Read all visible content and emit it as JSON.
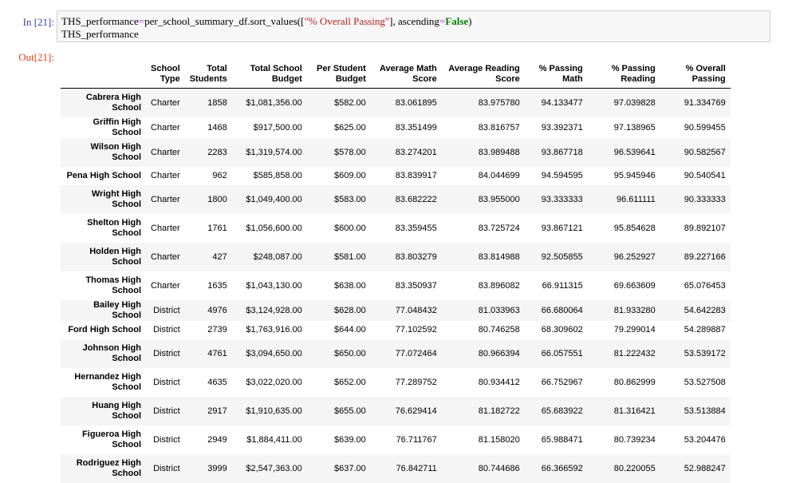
{
  "cell": {
    "in_prompt": "In [21]:",
    "out_prompt": "Out[21]:",
    "code": {
      "line1_var": "THS_performance",
      "line1_op": "=",
      "line1_call": "per_school_summary_df.sort_values([",
      "line1_str": "\"% Overall Passing\"",
      "line1_mid": "], ascending",
      "line1_op2": "=",
      "line1_kw": "False",
      "line1_end": ")",
      "line2": "THS_performance"
    }
  },
  "table": {
    "columns": [
      "School\nType",
      "Total\nStudents",
      "Total School\nBudget",
      "Per Student\nBudget",
      "Average Math\nScore",
      "Average Reading\nScore",
      "% Passing\nMath",
      "% Passing\nReading",
      "% Overall\nPassing"
    ],
    "rows": [
      {
        "school": "Cabrera High School",
        "cells": [
          "Charter",
          "1858",
          "$1,081,356.00",
          "$582.00",
          "83.061895",
          "83.975780",
          "94.133477",
          "97.039828",
          "91.334769"
        ]
      },
      {
        "school": "Griffin High School",
        "cells": [
          "Charter",
          "1468",
          "$917,500.00",
          "$625.00",
          "83.351499",
          "83.816757",
          "93.392371",
          "97.138965",
          "90.599455"
        ]
      },
      {
        "school": "Wilson High School",
        "cells": [
          "Charter",
          "2283",
          "$1,319,574.00",
          "$578.00",
          "83.274201",
          "83.989488",
          "93.867718",
          "96.539641",
          "90.582567"
        ]
      },
      {
        "school": "Pena High School",
        "cells": [
          "Charter",
          "962",
          "$585,858.00",
          "$609.00",
          "83.839917",
          "84.044699",
          "94.594595",
          "95.945946",
          "90.540541"
        ]
      },
      {
        "school": "Wright High School",
        "cells": [
          "Charter",
          "1800",
          "$1,049,400.00",
          "$583.00",
          "83.682222",
          "83.955000",
          "93.333333",
          "96.611111",
          "90.333333"
        ]
      },
      {
        "school": "Shelton High School",
        "cells": [
          "Charter",
          "1761",
          "$1,056,600.00",
          "$600.00",
          "83.359455",
          "83.725724",
          "93.867121",
          "95.854628",
          "89.892107"
        ]
      },
      {
        "school": "Holden High School",
        "cells": [
          "Charter",
          "427",
          "$248,087.00",
          "$581.00",
          "83.803279",
          "83.814988",
          "92.505855",
          "96.252927",
          "89.227166"
        ]
      },
      {
        "school": "Thomas High School",
        "cells": [
          "Charter",
          "1635",
          "$1,043,130.00",
          "$638.00",
          "83.350937",
          "83.896082",
          "66.911315",
          "69.663609",
          "65.076453"
        ]
      },
      {
        "school": "Bailey High School",
        "cells": [
          "District",
          "4976",
          "$3,124,928.00",
          "$628.00",
          "77.048432",
          "81.033963",
          "66.680064",
          "81.933280",
          "54.642283"
        ]
      },
      {
        "school": "Ford High School",
        "cells": [
          "District",
          "2739",
          "$1,763,916.00",
          "$644.00",
          "77.102592",
          "80.746258",
          "68.309602",
          "79.299014",
          "54.289887"
        ]
      },
      {
        "school": "Johnson High School",
        "cells": [
          "District",
          "4761",
          "$3,094,650.00",
          "$650.00",
          "77.072464",
          "80.966394",
          "66.057551",
          "81.222432",
          "53.539172"
        ]
      },
      {
        "school": "Hernandez High School",
        "cells": [
          "District",
          "4635",
          "$3,022,020.00",
          "$652.00",
          "77.289752",
          "80.934412",
          "66.752967",
          "80.862999",
          "53.527508"
        ]
      },
      {
        "school": "Huang High School",
        "cells": [
          "District",
          "2917",
          "$1,910,635.00",
          "$655.00",
          "76.629414",
          "81.182722",
          "65.683922",
          "81.316421",
          "53.513884"
        ]
      },
      {
        "school": "Figueroa High School",
        "cells": [
          "District",
          "2949",
          "$1,884,411.00",
          "$639.00",
          "76.711767",
          "81.158020",
          "65.988471",
          "80.739234",
          "53.204476"
        ]
      },
      {
        "school": "Rodriguez High School",
        "cells": [
          "District",
          "3999",
          "$2,547,363.00",
          "$637.00",
          "76.842711",
          "80.744686",
          "66.366592",
          "80.220055",
          "52.988247"
        ]
      }
    ]
  }
}
